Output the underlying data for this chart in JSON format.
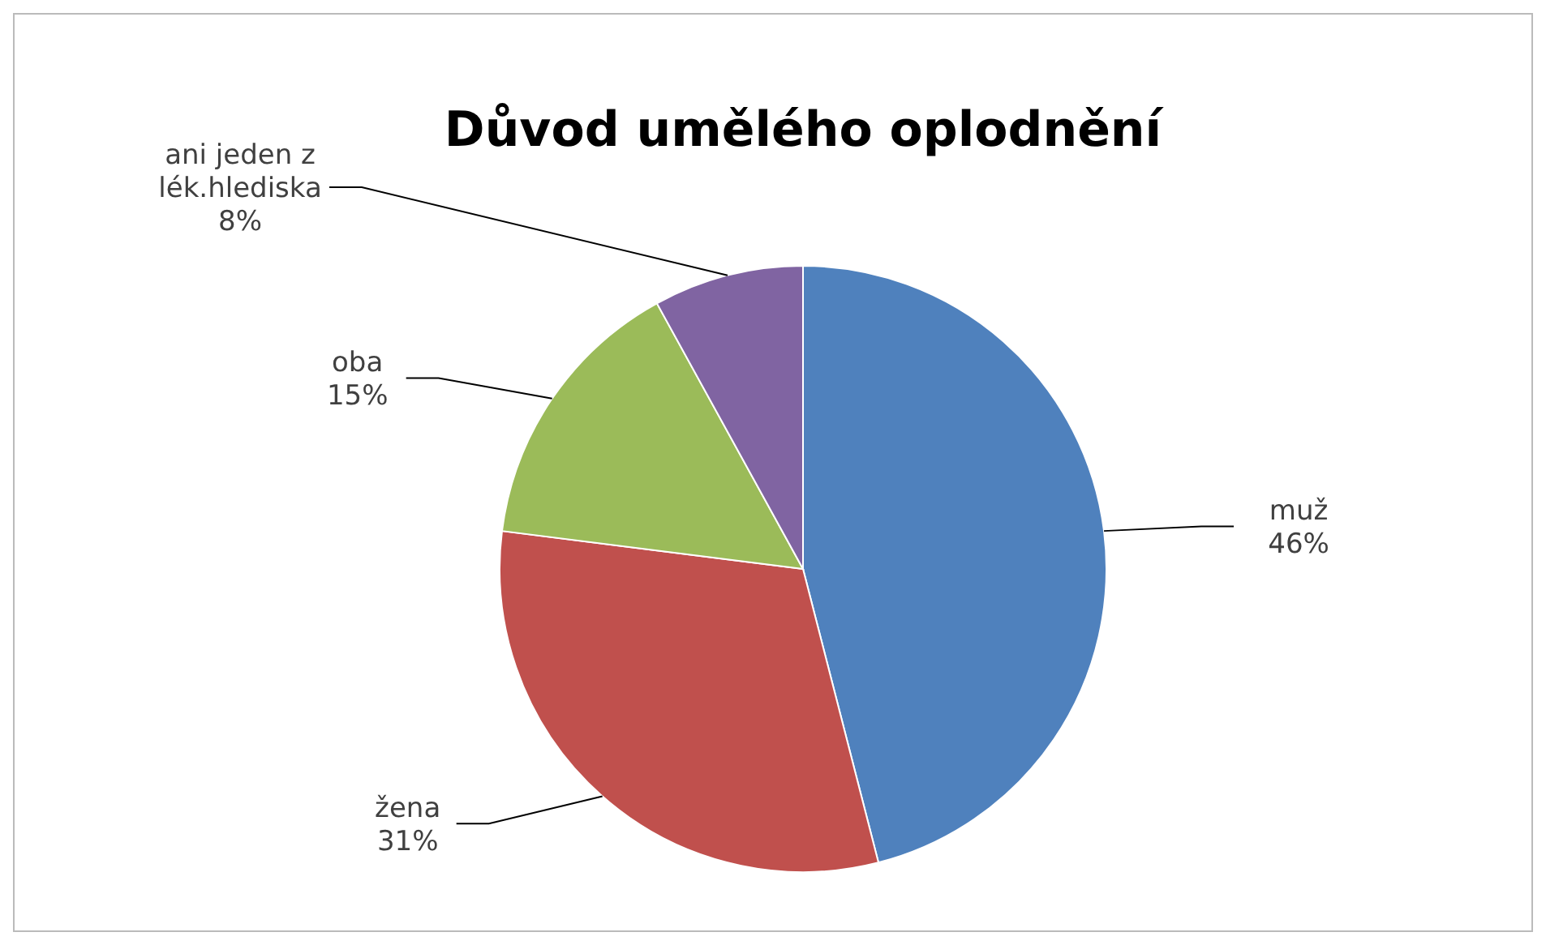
{
  "chart_data": {
    "type": "pie",
    "title": "Důvod umělého oplodnění",
    "categories": [
      "muž",
      "žena",
      "oba",
      "ani jeden z lék.hlediska"
    ],
    "values": [
      46,
      31,
      15,
      8
    ],
    "colors": [
      "#4f81bd",
      "#c0504d",
      "#9bbb59",
      "#8064a2"
    ],
    "value_labels": [
      "46%",
      "31%",
      "15%",
      "8%"
    ]
  }
}
